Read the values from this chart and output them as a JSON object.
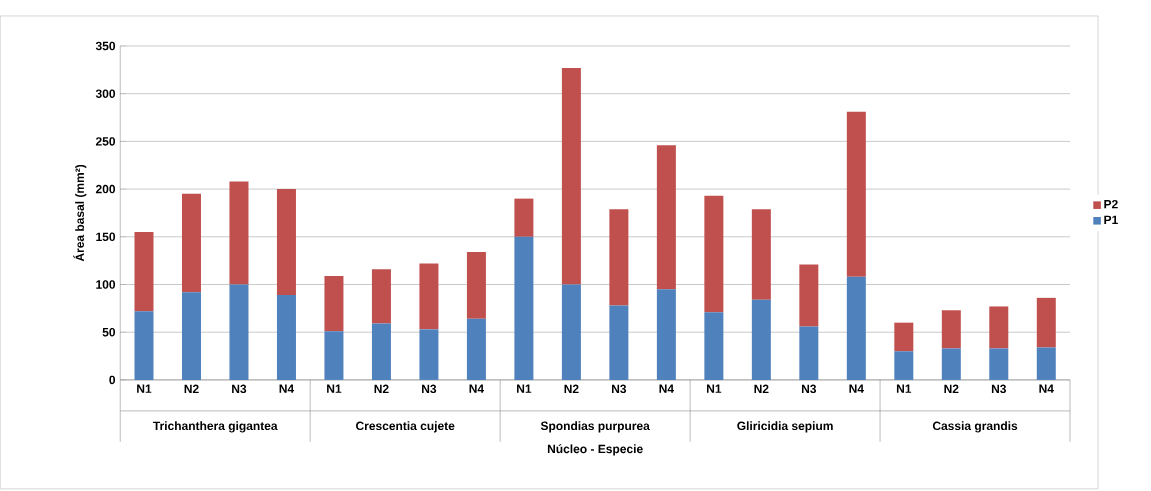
{
  "chart_data": {
    "type": "bar",
    "stacked": true,
    "categories": [
      "N1",
      "N2",
      "N3",
      "N4",
      "N1",
      "N2",
      "N3",
      "N4",
      "N1",
      "N2",
      "N3",
      "N4",
      "N1",
      "N2",
      "N3",
      "N4",
      "N1",
      "N2",
      "N3",
      "N4"
    ],
    "series": [
      {
        "name": "P1",
        "color": "#4f81bd",
        "values": [
          72,
          92,
          100,
          89,
          51,
          59,
          53,
          64,
          150,
          100,
          78,
          95,
          71,
          84,
          56,
          108,
          30,
          33,
          33,
          34
        ]
      },
      {
        "name": "P2",
        "color": "#c0504d",
        "values": [
          83,
          103,
          108,
          111,
          58,
          57,
          69,
          70,
          40,
          227,
          101,
          151,
          122,
          95,
          65,
          173,
          30,
          40,
          44,
          52
        ]
      }
    ],
    "annotations": [
      "Trichanthera  gigantea",
      "Crescentia cujete",
      "Spondias purpurea",
      "Gliricidia sepium",
      "Cassia grandis"
    ],
    "xlabel": "Núcleo - Especie",
    "ylabel": "Área basal (mm²)",
    "ylim": [
      0,
      350
    ],
    "yticks": [
      0,
      50,
      100,
      150,
      200,
      250,
      300,
      350
    ],
    "grid": "y",
    "legend": "right"
  }
}
